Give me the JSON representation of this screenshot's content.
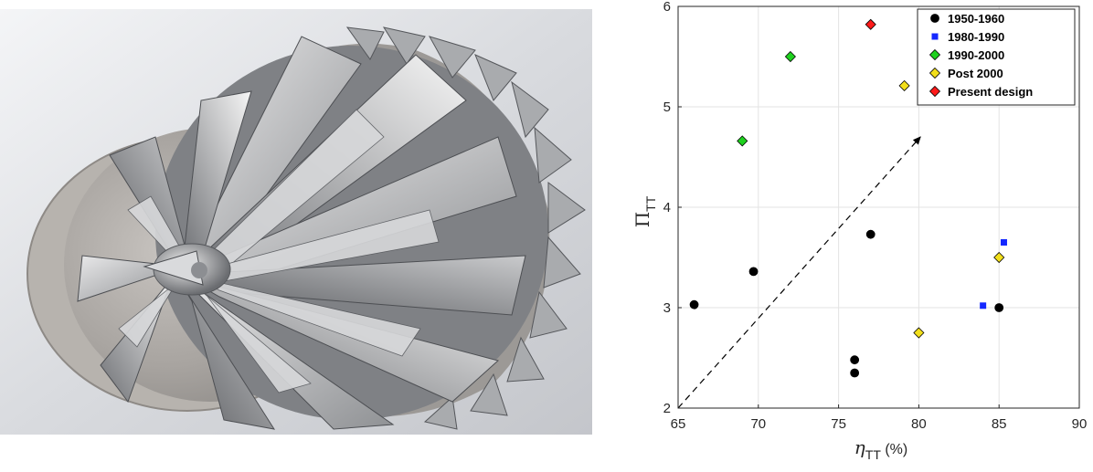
{
  "figure": {
    "left_panel": {
      "icon": "compressor-impeller-render-icon"
    },
    "colors": {
      "black": "#000000",
      "blue": "#1428ff",
      "green": "#1fd11f",
      "yellow": "#f2df1b",
      "red": "#ff1a1a",
      "grid": "#e3e3e3",
      "axis": "#262626"
    }
  },
  "chart_data": {
    "type": "scatter",
    "xlabel_symbol": "η",
    "xlabel_sub": "TT",
    "xlabel_unit": " (%)",
    "ylabel_symbol": "Π",
    "ylabel_sub": "TT",
    "xlim": [
      65,
      90
    ],
    "ylim": [
      2,
      6
    ],
    "xticks": [
      65,
      70,
      75,
      80,
      85,
      90
    ],
    "yticks": [
      2,
      3,
      4,
      5,
      6
    ],
    "grid": true,
    "legend_position": "top-right",
    "series": [
      {
        "name": "1950-1960",
        "marker": "circle",
        "color": "#000000",
        "points": [
          [
            66,
            3.03
          ],
          [
            69.7,
            3.36
          ],
          [
            76,
            2.48
          ],
          [
            76,
            2.35
          ],
          [
            77,
            3.73
          ],
          [
            85,
            3.0
          ]
        ]
      },
      {
        "name": "1980-1990",
        "marker": "square",
        "color": "#1428ff",
        "points": [
          [
            84,
            3.02
          ],
          [
            85.3,
            3.65
          ]
        ]
      },
      {
        "name": "1990-2000",
        "marker": "diamond",
        "color": "#1fd11f",
        "points": [
          [
            69,
            4.66
          ],
          [
            72,
            5.5
          ]
        ]
      },
      {
        "name": "Post 2000",
        "marker": "diamond",
        "color": "#f2df1b",
        "points": [
          [
            79.1,
            5.21
          ],
          [
            80,
            2.75
          ],
          [
            85,
            3.5
          ]
        ]
      },
      {
        "name": "Present design",
        "marker": "diamond",
        "color": "#ff1a1a",
        "points": [
          [
            77,
            5.82
          ]
        ]
      }
    ],
    "trend_arrow": {
      "from": [
        65,
        2.0
      ],
      "to": [
        80.1,
        4.7
      ],
      "style": "dashed"
    }
  }
}
